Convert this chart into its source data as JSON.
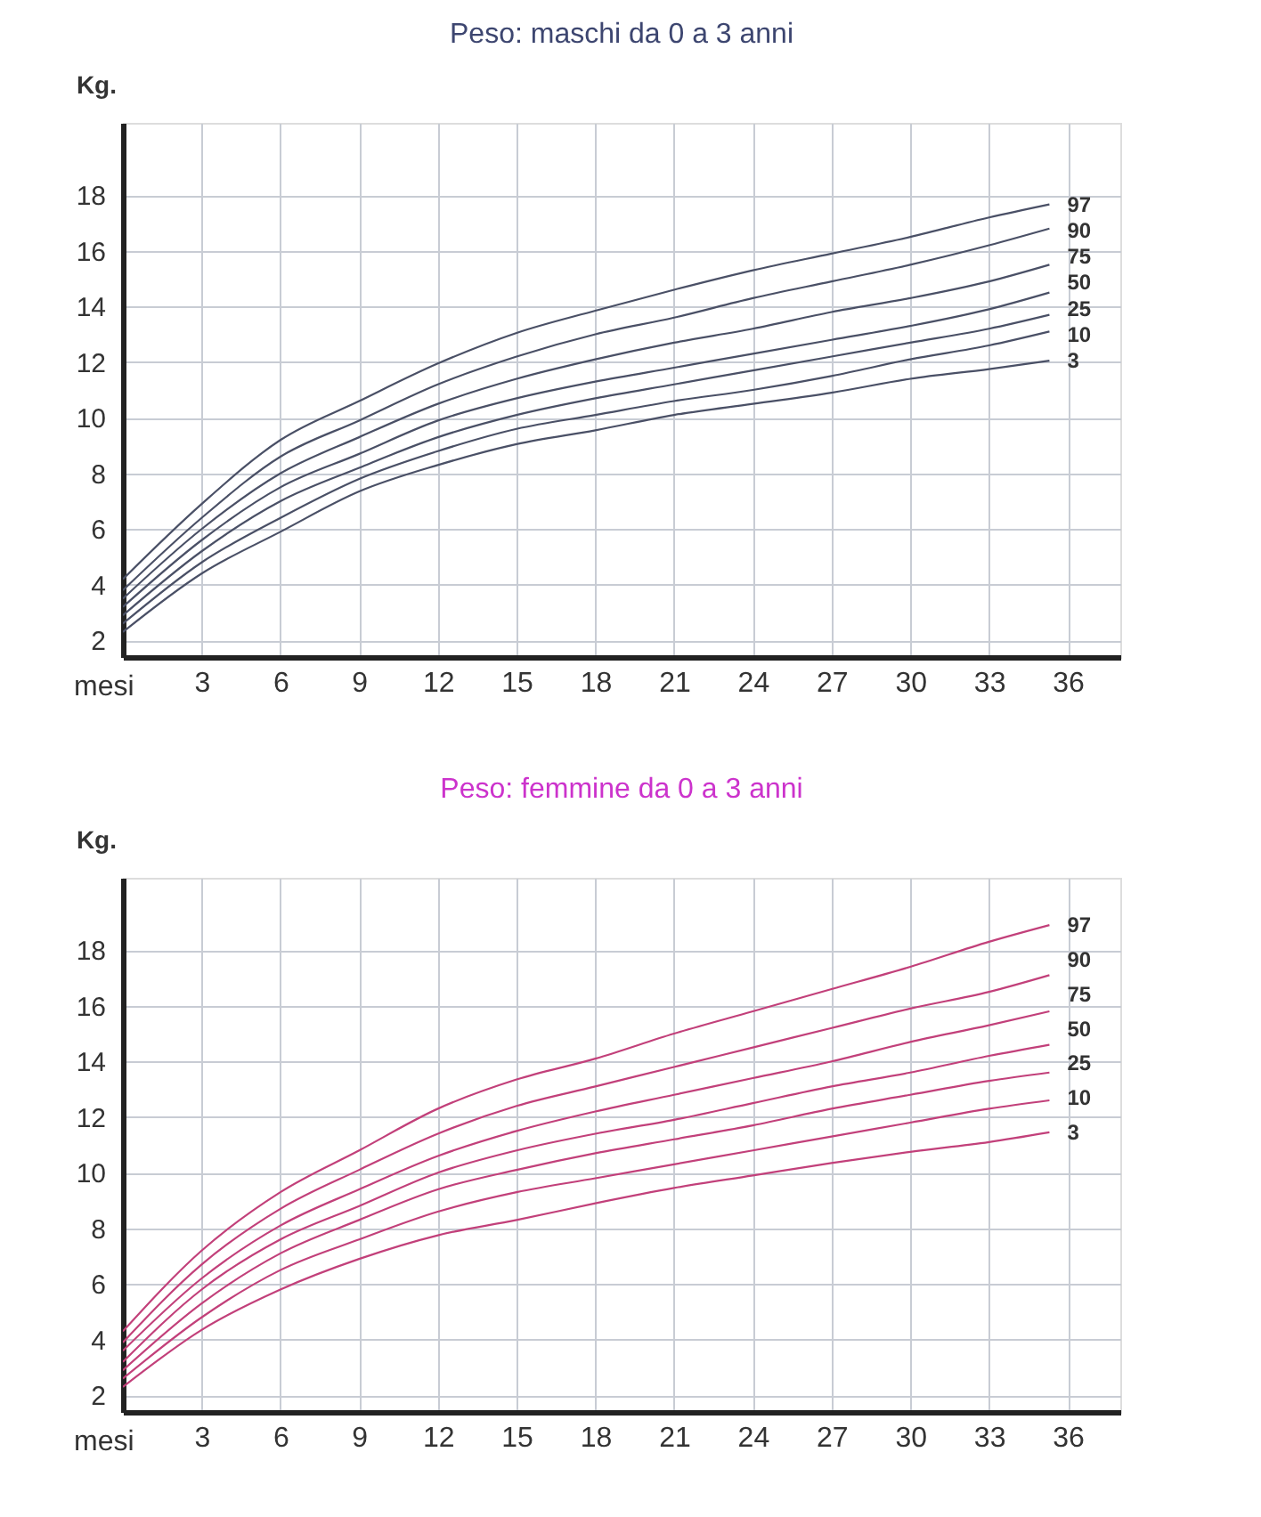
{
  "chart_data": [
    {
      "type": "line",
      "title": "Peso: maschi da 0 a 3 anni",
      "xlabel": "mesi",
      "ylabel": "Kg.",
      "x": [
        0,
        3,
        6,
        9,
        12,
        15,
        18,
        21,
        24,
        27,
        30,
        33,
        35.3
      ],
      "xlim": [
        0,
        38
      ],
      "ylim": [
        1.4,
        20.6
      ],
      "xticks": [
        3,
        6,
        9,
        12,
        15,
        18,
        21,
        24,
        27,
        30,
        33,
        36
      ],
      "yticks": [
        2,
        4,
        6,
        8,
        10,
        12,
        14,
        16,
        18
      ],
      "grid": true,
      "legend": false,
      "marker": "none",
      "line_style": "solid",
      "series": [
        {
          "name": "97",
          "color": "#4a5066",
          "values": [
            4.2,
            6.9,
            9.2,
            10.6,
            11.95,
            13.05,
            13.85,
            14.6,
            15.3,
            15.9,
            16.5,
            17.2,
            17.67
          ]
        },
        {
          "name": "90",
          "color": "#4a5066",
          "values": [
            3.8,
            6.4,
            8.6,
            9.9,
            11.2,
            12.2,
            13.0,
            13.6,
            14.3,
            14.9,
            15.5,
            16.2,
            16.8
          ]
        },
        {
          "name": "75",
          "color": "#4a5066",
          "values": [
            3.5,
            6.0,
            8.0,
            9.3,
            10.5,
            11.4,
            12.1,
            12.7,
            13.2,
            13.8,
            14.3,
            14.9,
            15.5
          ]
        },
        {
          "name": "50",
          "color": "#4a5066",
          "values": [
            3.2,
            5.6,
            7.5,
            8.7,
            9.9,
            10.7,
            11.3,
            11.8,
            12.3,
            12.8,
            13.3,
            13.9,
            14.5
          ]
        },
        {
          "name": "25",
          "color": "#4a5066",
          "values": [
            2.9,
            5.2,
            7.0,
            8.2,
            9.3,
            10.1,
            10.7,
            11.2,
            11.7,
            12.2,
            12.7,
            13.2,
            13.7
          ]
        },
        {
          "name": "10",
          "color": "#4a5066",
          "values": [
            2.6,
            4.8,
            6.4,
            7.8,
            8.8,
            9.6,
            10.1,
            10.6,
            11.0,
            11.5,
            12.1,
            12.6,
            13.1
          ]
        },
        {
          "name": "3",
          "color": "#4a5066",
          "values": [
            2.3,
            4.4,
            5.9,
            7.35,
            8.3,
            9.05,
            9.55,
            10.1,
            10.5,
            10.9,
            11.4,
            11.75,
            12.05
          ]
        }
      ]
    },
    {
      "type": "line",
      "title": "Peso: femmine da 0 a 3 anni",
      "xlabel": "mesi",
      "ylabel": "Kg.",
      "x": [
        0,
        3,
        6,
        9,
        12,
        15,
        18,
        21,
        24,
        27,
        30,
        33,
        35.3
      ],
      "xlim": [
        0,
        38
      ],
      "ylim": [
        1.4,
        20.6
      ],
      "xticks": [
        3,
        6,
        9,
        12,
        15,
        18,
        21,
        24,
        27,
        30,
        33,
        36
      ],
      "yticks": [
        2,
        4,
        6,
        8,
        10,
        12,
        14,
        16,
        18
      ],
      "grid": true,
      "legend": false,
      "marker": "none",
      "line_style": "solid",
      "series": [
        {
          "name": "97",
          "color": "#c2407a",
          "values": [
            4.3,
            7.2,
            9.3,
            10.8,
            12.3,
            13.35,
            14.1,
            15.0,
            15.8,
            16.6,
            17.4,
            18.3,
            18.9
          ]
        },
        {
          "name": "90",
          "color": "#c2407a",
          "values": [
            3.9,
            6.7,
            8.7,
            10.1,
            11.4,
            12.4,
            13.1,
            13.8,
            14.5,
            15.2,
            15.9,
            16.5,
            17.1
          ]
        },
        {
          "name": "75",
          "color": "#c2407a",
          "values": [
            3.6,
            6.2,
            8.1,
            9.4,
            10.6,
            11.5,
            12.2,
            12.8,
            13.4,
            14.0,
            14.7,
            15.3,
            15.8
          ]
        },
        {
          "name": "50",
          "color": "#c2407a",
          "values": [
            3.2,
            5.8,
            7.6,
            8.8,
            10.0,
            10.8,
            11.4,
            11.9,
            12.5,
            13.1,
            13.6,
            14.2,
            14.6
          ]
        },
        {
          "name": "25",
          "color": "#c2407a",
          "values": [
            2.9,
            5.3,
            7.1,
            8.3,
            9.4,
            10.1,
            10.7,
            11.2,
            11.7,
            12.3,
            12.8,
            13.3,
            13.6
          ]
        },
        {
          "name": "10",
          "color": "#c2407a",
          "values": [
            2.6,
            4.8,
            6.5,
            7.6,
            8.6,
            9.3,
            9.8,
            10.3,
            10.8,
            11.3,
            11.8,
            12.3,
            12.6
          ]
        },
        {
          "name": "3",
          "color": "#c2407a",
          "values": [
            2.3,
            4.35,
            5.8,
            6.9,
            7.75,
            8.3,
            8.9,
            9.45,
            9.9,
            10.35,
            10.75,
            11.1,
            11.45
          ]
        }
      ]
    }
  ]
}
